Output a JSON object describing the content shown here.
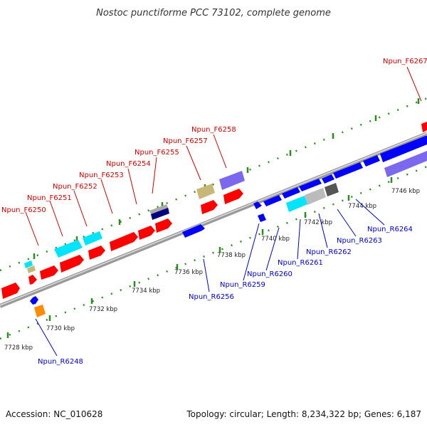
{
  "title": "Nostoc punctiforme PCC 73102, complete genome",
  "footer": {
    "accession": "Accession: NC_010628",
    "topology": "Topology: circular; Length: 8,234,322 bp; Genes: 6,187"
  },
  "ticks": [
    "7728 kbp",
    "7730 kbp",
    "7732 kbp",
    "7734 kbp",
    "7736 kbp",
    "7738 kbp",
    "7740 kbp",
    "7742 kbp",
    "7744 kbp",
    "7746 kbp"
  ],
  "forward_labels": [
    "Npun_F6250",
    "Npun_F6251",
    "Npun_F6252",
    "Npun_F6253",
    "Npun_F6254",
    "Npun_F6255",
    "Npun_F6257",
    "Npun_F6258",
    "Npun_F6267"
  ],
  "reverse_labels": [
    "Npun_R6248",
    "Npun_R6256",
    "Npun_R6259",
    "Npun_R6260",
    "Npun_R6261",
    "Npun_R6262",
    "Npun_R6263",
    "Npun_R6264"
  ],
  "colors": {
    "forward_gene": "#ff0000",
    "reverse_gene": "#0000ff",
    "rna_cyan": "#00e5ff",
    "khaki": "#c8b878",
    "lavender": "#7b68ee",
    "grey": "#bbbbbb",
    "dark_grey": "#555555",
    "orange": "#ff8c00",
    "navy": "#000080",
    "backbone": "#888888",
    "tick_green": "#2e8b22"
  }
}
